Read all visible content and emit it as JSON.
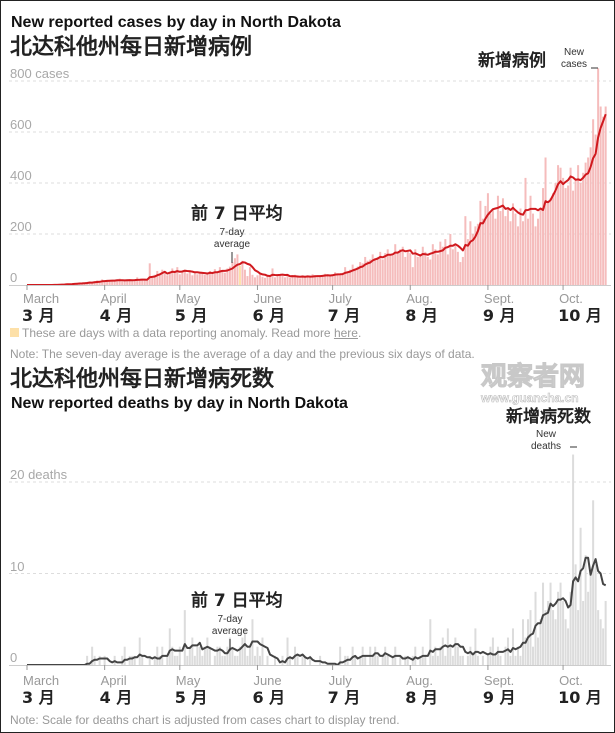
{
  "chart_data": [
    {
      "type": "bar",
      "title": "New reported cases by day in North Dakota",
      "title_zh": "北达科他州每日新增病例",
      "start_date": "March 1",
      "unit_label": "800 cases",
      "yticks": [
        "0",
        "200",
        "400",
        "600",
        "800 cases"
      ],
      "ytick_values": [
        0,
        200,
        400,
        600,
        800
      ],
      "ylim": [
        0,
        800
      ],
      "grid": true,
      "months": [
        {
          "en": "March",
          "zh": "3 月",
          "day": 0
        },
        {
          "en": "April",
          "zh": "4 月",
          "day": 31
        },
        {
          "en": "May",
          "zh": "5 月",
          "day": 61
        },
        {
          "en": "June",
          "zh": "6 月",
          "day": 92
        },
        {
          "en": "July",
          "zh": "7 月",
          "day": 122
        },
        {
          "en": "Aug.",
          "zh": "8 月",
          "day": 153
        },
        {
          "en": "Sept.",
          "zh": "9 月",
          "day": 184
        },
        {
          "en": "Oct.",
          "zh": "10 月",
          "day": 214
        }
      ],
      "daily": [
        0,
        0,
        0,
        0,
        0,
        0,
        0,
        0,
        0,
        0,
        1,
        1,
        2,
        3,
        4,
        2,
        5,
        6,
        4,
        7,
        8,
        9,
        6,
        10,
        12,
        14,
        8,
        15,
        18,
        12,
        22,
        17,
        20,
        15,
        18,
        16,
        20,
        25,
        14,
        18,
        22,
        19,
        15,
        21,
        30,
        18,
        24,
        20,
        17,
        85,
        28,
        40,
        55,
        45,
        60,
        48,
        38,
        52,
        65,
        48,
        70,
        42,
        55,
        60,
        45,
        58,
        38,
        50,
        42,
        47,
        52,
        40,
        48,
        55,
        45,
        62,
        50,
        70,
        58,
        48,
        65,
        72,
        90,
        105,
        120,
        75,
        95,
        60,
        35,
        70,
        40,
        30,
        38,
        45,
        32,
        28,
        40,
        35,
        65,
        30,
        42,
        38,
        35,
        30,
        36,
        28,
        34,
        40,
        30,
        26,
        38,
        32,
        35,
        30,
        42,
        38,
        30,
        36,
        40,
        44,
        38,
        36,
        42,
        50,
        40,
        45,
        48,
        70,
        55,
        60,
        80,
        65,
        72,
        90,
        85,
        110,
        95,
        100,
        120,
        105,
        110,
        130,
        100,
        125,
        140,
        120,
        115,
        160,
        130,
        140,
        150,
        110,
        135,
        125,
        70,
        140,
        110,
        120,
        150,
        130,
        110,
        100,
        160,
        140,
        120,
        170,
        150,
        180,
        120,
        200,
        140,
        160,
        130,
        90,
        110,
        270,
        180,
        250,
        200,
        230,
        240,
        330,
        260,
        310,
        360,
        280,
        300,
        260,
        350,
        290,
        340,
        270,
        300,
        250,
        320,
        280,
        230,
        300,
        250,
        420,
        260,
        350,
        280,
        230,
        260,
        300,
        380,
        500,
        320,
        340,
        360,
        400,
        470,
        460,
        420,
        380,
        390,
        460,
        370,
        410,
        470,
        400,
        440,
        480,
        500,
        540,
        650,
        590,
        850,
        700,
        660,
        700
      ],
      "anomaly_days": [
        85
      ],
      "series_labels": {
        "daily_en": "New cases",
        "daily_zh": "新增病例",
        "avg_en": "7-day average",
        "avg_zh": "前 7 日平均"
      },
      "colors": {
        "bar": "#f5bcbc",
        "line": "#d0191e",
        "anomaly": "#fde0a8",
        "grid": "#dddddd"
      },
      "legend": "These are days with a data reporting anomaly. Read more",
      "legend_link": "here",
      "note": "Note: The seven-day average is the average of a day and the previous six days of data."
    },
    {
      "type": "bar",
      "title": "New reported deaths by day in North Dakota",
      "title_zh": "北达科他州每日新增病死数",
      "start_date": "March 1",
      "yticks": [
        "0",
        "10",
        "20 deaths"
      ],
      "ytick_values": [
        0,
        10,
        20
      ],
      "ylim": [
        0,
        20
      ],
      "grid": true,
      "daily": [
        0,
        0,
        0,
        0,
        0,
        0,
        0,
        0,
        0,
        0,
        0,
        0,
        0,
        0,
        0,
        0,
        0,
        0,
        0,
        0,
        0,
        0,
        0,
        0,
        1,
        0,
        2,
        1,
        0,
        1,
        0,
        1,
        0,
        0,
        0,
        1,
        0,
        0,
        1,
        2,
        0,
        1,
        1,
        1,
        0,
        3,
        1,
        0,
        0,
        1,
        0,
        1,
        2,
        1,
        2,
        0,
        1,
        4,
        2,
        1,
        1,
        2,
        0,
        6,
        1,
        2,
        3,
        1,
        2,
        2,
        1,
        2,
        3,
        2,
        0,
        1,
        2,
        2,
        1,
        1,
        2,
        3,
        2,
        1,
        1,
        2,
        3,
        4,
        1,
        2,
        5,
        1,
        2,
        1,
        3,
        0,
        1,
        0,
        0,
        1,
        0,
        0,
        1,
        0,
        3,
        1,
        0,
        2,
        1,
        0,
        1,
        1,
        0,
        1,
        0,
        0,
        0,
        1,
        0,
        0,
        0,
        0,
        0,
        0,
        0,
        2,
        0,
        1,
        1,
        0,
        2,
        1,
        0,
        1,
        2,
        1,
        0,
        2,
        1,
        2,
        1,
        0,
        1,
        2,
        1,
        0,
        1,
        2,
        0,
        1,
        0,
        1,
        1,
        0,
        1,
        2,
        0,
        1,
        2,
        1,
        0,
        5,
        1,
        2,
        1,
        2,
        3,
        1,
        4,
        2,
        1,
        3,
        2,
        1,
        1,
        0,
        1,
        2,
        1,
        4,
        1,
        0,
        1,
        0,
        1,
        2,
        3,
        1,
        2,
        1,
        0,
        2,
        3,
        1,
        4,
        1,
        2,
        1,
        5,
        3,
        5,
        6,
        2,
        8,
        3,
        5,
        9,
        6,
        7,
        9,
        6,
        5,
        8,
        9,
        7,
        5,
        4,
        8,
        23,
        11,
        6,
        15,
        7,
        12,
        8,
        10,
        18,
        11,
        6,
        5,
        4,
        7
      ],
      "series_labels": {
        "daily_en": "New deaths",
        "daily_zh": "新增病死数",
        "avg_en": "7-day average",
        "avg_zh": "前 7 日平均"
      },
      "colors": {
        "bar": "#dcdcdc",
        "line": "#444444",
        "grid": "#dddddd"
      },
      "note": "Note: Scale for deaths chart is adjusted from cases chart to display trend."
    }
  ],
  "watermark": {
    "logo": "观察者网",
    "url": "www.guancha.cn"
  }
}
